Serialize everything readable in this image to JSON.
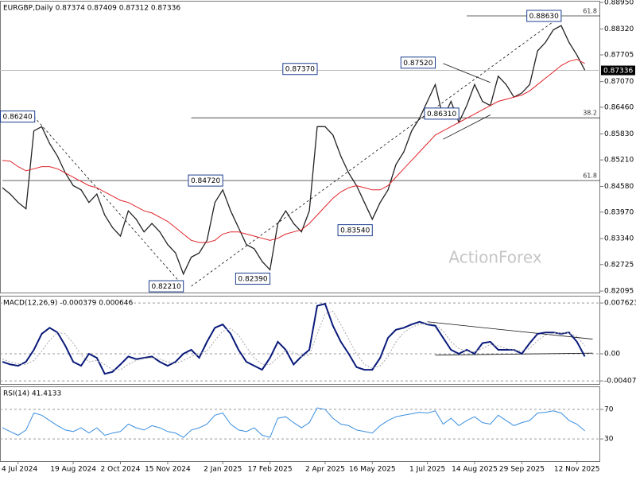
{
  "chart_data": [
    {
      "type": "line",
      "title": "EURGBP,Daily 0.87374 0.87409 0.87312 0.87336",
      "watermark": "ActionForex",
      "ylim": [
        0.8206,
        0.8897
      ],
      "yticks": [
        {
          "value": 0.8895,
          "label": "0.88950"
        },
        {
          "value": 0.8832,
          "label": "0.88320"
        },
        0.87705,
        {
          "value": 0.8707,
          "label": "0.87070"
        },
        {
          "value": 0.8646,
          "label": "0.86460"
        },
        {
          "value": 0.8583,
          "label": "0.85830"
        },
        {
          "value": 0.8521,
          "label": "0.85210"
        },
        {
          "value": 0.8458,
          "label": "0.84580"
        },
        {
          "value": 0.8397,
          "label": "0.83970"
        },
        {
          "value": 0.8334,
          "label": "0.83340"
        },
        0.82725,
        0.82095
      ],
      "current": {
        "value": 0.87336,
        "label": "0.87336"
      },
      "series": [
        {
          "color": "#222222",
          "values": [
            0.8455,
            0.844,
            0.842,
            0.8405,
            0.859,
            0.86,
            0.856,
            0.853,
            0.849,
            0.846,
            0.845,
            0.842,
            0.844,
            0.839,
            0.836,
            0.834,
            0.84,
            0.838,
            0.835,
            0.837,
            0.835,
            0.832,
            0.83,
            0.825,
            0.829,
            0.83,
            0.833,
            0.842,
            0.845,
            0.84,
            0.836,
            0.832,
            0.831,
            0.828,
            0.826,
            0.837,
            0.84,
            0.837,
            0.835,
            0.84,
            0.86,
            0.86,
            0.858,
            0.853,
            0.849,
            0.846,
            0.842,
            0.838,
            0.842,
            0.845,
            0.851,
            0.854,
            0.859,
            0.862,
            0.866,
            0.87,
            0.862,
            0.866,
            0.861,
            0.865,
            0.87,
            0.866,
            0.865,
            0.872,
            0.87,
            0.867,
            0.868,
            0.87,
            0.878,
            0.88,
            0.883,
            0.884,
            0.88,
            0.877,
            0.8734
          ]
        },
        {
          "color": "#e0242b",
          "values": [
            0.852,
            0.8518,
            0.8505,
            0.8495,
            0.85,
            0.8505,
            0.8505,
            0.85,
            0.849,
            0.848,
            0.847,
            0.846,
            0.8455,
            0.8445,
            0.8435,
            0.8425,
            0.842,
            0.841,
            0.84,
            0.8395,
            0.8385,
            0.8375,
            0.836,
            0.8345,
            0.833,
            0.8325,
            0.8325,
            0.833,
            0.8345,
            0.835,
            0.835,
            0.8345,
            0.834,
            0.8335,
            0.833,
            0.8335,
            0.8345,
            0.835,
            0.8355,
            0.837,
            0.839,
            0.841,
            0.843,
            0.8445,
            0.8455,
            0.846,
            0.8455,
            0.845,
            0.845,
            0.846,
            0.848,
            0.85,
            0.852,
            0.854,
            0.856,
            0.858,
            0.859,
            0.86,
            0.861,
            0.862,
            0.863,
            0.864,
            0.865,
            0.866,
            0.8665,
            0.867,
            0.8675,
            0.8685,
            0.87,
            0.8715,
            0.873,
            0.8745,
            0.8755,
            0.876,
            0.875
          ]
        }
      ],
      "annotations": [
        {
          "x": 4,
          "value": 0.8624,
          "label": "0.86240"
        },
        {
          "x": 28,
          "value": 0.8472,
          "label": "0.84720"
        },
        {
          "x": 23,
          "value": 0.8221,
          "label": "0.82210"
        },
        {
          "x": 34,
          "value": 0.8239,
          "label": "0.82390"
        },
        {
          "x": 40,
          "value": 0.8737,
          "label": "0.87370"
        },
        {
          "x": 47,
          "value": 0.8354,
          "label": "0.83540"
        },
        {
          "x": 55,
          "value": 0.8752,
          "label": "0.87520"
        },
        {
          "x": 58,
          "value": 0.8631,
          "label": "0.86310"
        },
        {
          "x": 71,
          "value": 0.8863,
          "label": "0.88630"
        }
      ],
      "fib_levels": [
        {
          "ratio": 61.8,
          "value": 0.8863,
          "from": 59
        },
        {
          "ratio": 38.2,
          "value": 0.8621,
          "from": 24
        },
        {
          "ratio": 61.8,
          "value": 0.8472,
          "from": 0
        }
      ],
      "trendlines": [
        {
          "x": [
            4,
            23
          ],
          "values": [
            0.8624,
            0.8221
          ],
          "dash": true
        },
        {
          "x": [
            24,
            71
          ],
          "values": [
            0.8221,
            0.8863
          ],
          "dash": true
        },
        {
          "x": [
            56,
            62
          ],
          "values": [
            0.875,
            0.8705
          ],
          "dash": false
        },
        {
          "x": [
            56,
            62
          ],
          "values": [
            0.857,
            0.8628
          ],
          "dash": false
        }
      ]
    },
    {
      "type": "line",
      "title": "MACD(12,26,9) -0.000379 0.000646",
      "ylim": [
        -0.00453,
        0.00859
      ],
      "yticks": [
        0.007623,
        {
          "value": 0,
          "label": "0.00"
        },
        -0.004073
      ],
      "grid": true,
      "series": [
        {
          "color": "#0a1a7a",
          "values": [
            -0.0012,
            -0.0016,
            -0.0018,
            -0.0012,
            0.0006,
            0.003,
            0.0039,
            0.0032,
            0.0012,
            -0.0012,
            -0.0018,
            0,
            -0.0006,
            -0.003,
            -0.0027,
            -0.0016,
            -0.0004,
            -0.0008,
            -0.0006,
            -0.0004,
            -0.0012,
            -0.0018,
            -0.0012,
            0,
            0.0006,
            -0.0006,
            0.0018,
            0.0039,
            0.0044,
            0.003,
            0.0006,
            -0.0012,
            -0.0018,
            -0.0024,
            -0.0006,
            0.0018,
            0.0006,
            -0.0016,
            -0.0004,
            0.0006,
            0.0072,
            0.0075,
            0.0042,
            0.0018,
            0,
            -0.002,
            -0.0024,
            -0.0024,
            -0.0006,
            0.0024,
            0.0036,
            0.0039,
            0.0044,
            0.0048,
            0.0044,
            0.0042,
            0.0024,
            0.0006,
            0,
            0.0006,
            0,
            0.0016,
            0.0018,
            0.0006,
            0.0006,
            0.0006,
            0,
            0.0016,
            0.003,
            0.0032,
            0.0032,
            0.003,
            0.0032,
            0.0018,
            -0.0004
          ]
        },
        {
          "color": "#a8a8a8",
          "dash": true,
          "values": [
            -0.0008,
            -0.0012,
            -0.0015,
            -0.0016,
            -0.001,
            0.0004,
            0.002,
            0.0032,
            0.003,
            0.0016,
            -0.0002,
            -0.0012,
            -0.001,
            -0.0016,
            -0.0024,
            -0.0024,
            -0.0016,
            -0.001,
            -0.0007,
            -0.0006,
            -0.0008,
            -0.0012,
            -0.0014,
            -0.001,
            -0.0004,
            0,
            0.0004,
            0.002,
            0.0034,
            0.0038,
            0.0028,
            0.001,
            -0.0006,
            -0.0016,
            -0.0016,
            -0.0006,
            0.0006,
            0.0002,
            -0.0004,
            -0.0002,
            0.003,
            0.006,
            0.0064,
            0.0044,
            0.0022,
            0,
            -0.0016,
            -0.0022,
            -0.0018,
            -0.0004,
            0.0018,
            0.0032,
            0.004,
            0.0044,
            0.0045,
            0.0044,
            0.0034,
            0.0018,
            0.0008,
            0.0004,
            0.0003,
            0.0008,
            0.0014,
            0.0012,
            0.0008,
            0.0006,
            0.0004,
            0.0008,
            0.002,
            0.0028,
            0.0031,
            0.0031,
            0.0031,
            0.0026,
            0.0012
          ]
        }
      ],
      "trendlines": [
        {
          "x": [
            54,
            75
          ],
          "values": [
            0.0048,
            0.0022
          ],
          "dash": false
        },
        {
          "x": [
            55,
            75
          ],
          "values": [
            -0.0002,
            0.0001
          ],
          "dash": false
        }
      ]
    },
    {
      "type": "line",
      "title": "RSI(14) 41.4133",
      "ylim": [
        0,
        100
      ],
      "yticks": [
        70,
        30
      ],
      "grid": true,
      "series": [
        {
          "color": "#3a8ee0",
          "values": [
            45,
            40,
            35,
            42,
            65,
            62,
            55,
            48,
            42,
            40,
            45,
            38,
            45,
            35,
            38,
            40,
            50,
            45,
            42,
            48,
            45,
            40,
            38,
            32,
            42,
            45,
            50,
            62,
            65,
            50,
            42,
            40,
            45,
            35,
            32,
            58,
            60,
            52,
            45,
            52,
            72,
            70,
            58,
            50,
            48,
            42,
            40,
            38,
            48,
            55,
            60,
            62,
            64,
            66,
            65,
            68,
            50,
            58,
            48,
            55,
            60,
            52,
            50,
            62,
            55,
            48,
            52,
            55,
            65,
            66,
            68,
            65,
            55,
            50,
            41
          ]
        }
      ],
      "categories": [
        null,
        null,
        "4 Jul 2024",
        null,
        null,
        null,
        null,
        null,
        null,
        "19 Aug 2024",
        null,
        null,
        null,
        null,
        null,
        "2 Oct 2024",
        null,
        null,
        null,
        null,
        null,
        "15 Nov 2024",
        null,
        null,
        null,
        null,
        null,
        null,
        "2 Jan 2025",
        null,
        null,
        null,
        null,
        null,
        "17 Feb 2025",
        null,
        null,
        null,
        null,
        null,
        null,
        "2 Apr 2025",
        null,
        null,
        null,
        null,
        null,
        "16 May 2025",
        null,
        null,
        null,
        null,
        null,
        null,
        "1 Jul 2025",
        null,
        null,
        null,
        null,
        null,
        "14 Aug 2025",
        null,
        null,
        null,
        null,
        null,
        "29 Sep 2025",
        null,
        null,
        null,
        null,
        null,
        null,
        "12 Nov 2025",
        null
      ]
    }
  ]
}
